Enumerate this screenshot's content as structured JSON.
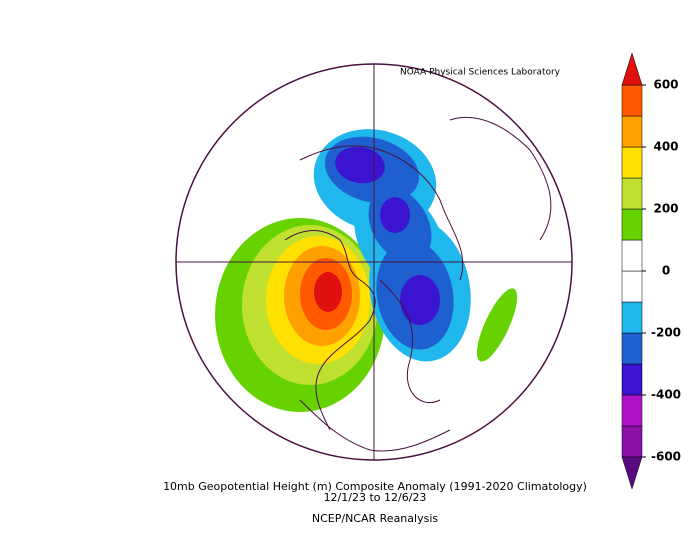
{
  "credit": "NOAA Physical Sciences Laboratory",
  "title": "10mb Geopotential Height (m) Composite Anomaly (1991-2020 Climatology)",
  "subtitle": "12/1/23  to 12/6/23",
  "source": "NCEP/NCAR Reanalysis",
  "colorbar": {
    "lim": [
      -600,
      600
    ],
    "ticks": [
      600,
      400,
      200,
      0,
      -200,
      -400,
      -600
    ],
    "below_color": "#5a0a80",
    "above_color": "#e01010",
    "colors": [
      "#8a10a8",
      "#b010c8",
      "#3a14d0",
      "#1e60d0",
      "#20b8ec",
      "#ffffff",
      "#ffffff",
      "#66d200",
      "#c0e030",
      "#ffe000",
      "#ffa000",
      "#ff5a00"
    ]
  }
}
